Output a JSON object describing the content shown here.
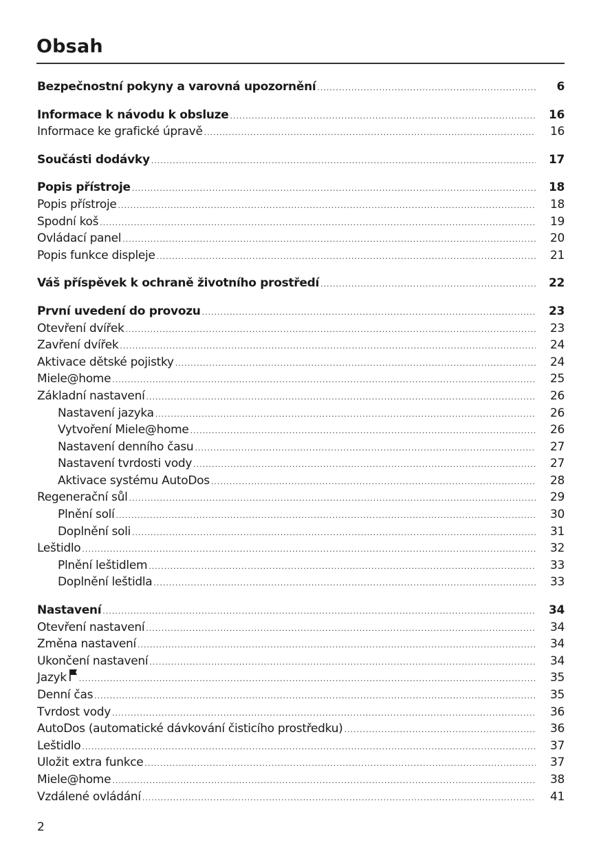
{
  "title": "Obsah",
  "page_number": "2",
  "sections": [
    {
      "entries": [
        {
          "text": "Bezpečnostní pokyny a varovná upozornění",
          "page": "6",
          "bold": true,
          "level": 1
        }
      ]
    },
    {
      "entries": [
        {
          "text": "Informace k návodu k obsluze",
          "page": "16",
          "bold": true,
          "level": 1
        },
        {
          "text": "Informace ke grafické úpravě",
          "page": "16",
          "level": 1
        }
      ]
    },
    {
      "entries": [
        {
          "text": "Součásti dodávky",
          "page": "17",
          "bold": true,
          "level": 1
        }
      ]
    },
    {
      "entries": [
        {
          "text": "Popis přístroje",
          "page": "18",
          "bold": true,
          "level": 1
        },
        {
          "text": "Popis přístroje",
          "page": "18",
          "level": 1
        },
        {
          "text": "Spodní koš",
          "page": "19",
          "level": 1
        },
        {
          "text": "Ovládací panel",
          "page": "20",
          "level": 1
        },
        {
          "text": "Popis funkce displeje",
          "page": "21",
          "level": 1
        }
      ]
    },
    {
      "entries": [
        {
          "text": "Váš příspěvek k ochraně životního prostředí",
          "page": "22",
          "bold": true,
          "level": 1
        }
      ]
    },
    {
      "entries": [
        {
          "text": "První uvedení do provozu",
          "page": "23",
          "bold": true,
          "level": 1
        },
        {
          "text": "Otevření dvířek",
          "page": "23",
          "level": 1
        },
        {
          "text": "Zavření dvířek",
          "page": "24",
          "level": 1
        },
        {
          "text": "Aktivace dětské pojistky",
          "page": "24",
          "level": 1
        },
        {
          "text": "Miele@home",
          "page": "25",
          "level": 1
        },
        {
          "text": "Základní nastavení",
          "page": "26",
          "level": 1
        },
        {
          "text": "Nastavení jazyka",
          "page": "26",
          "level": 2
        },
        {
          "text": "Vytvoření Miele@home",
          "page": "26",
          "level": 2
        },
        {
          "text": "Nastavení denního času",
          "page": "27",
          "level": 2
        },
        {
          "text": "Nastavení tvrdosti vody",
          "page": "27",
          "level": 2
        },
        {
          "text": "Aktivace systému AutoDos",
          "page": "28",
          "level": 2
        },
        {
          "text": "Regenerační sůl",
          "page": "29",
          "level": 1
        },
        {
          "text": "Plnění solí",
          "page": "30",
          "level": 2
        },
        {
          "text": "Doplnění soli",
          "page": "31",
          "level": 2
        },
        {
          "text": "Leštidlo",
          "page": "32",
          "level": 1
        },
        {
          "text": "Plnění leštidlem",
          "page": "33",
          "level": 2
        },
        {
          "text": "Doplnění leštidla",
          "page": "33",
          "level": 2
        }
      ]
    },
    {
      "entries": [
        {
          "text": "Nastavení",
          "page": "34",
          "bold": true,
          "level": 1
        },
        {
          "text": "Otevření nastavení",
          "page": "34",
          "level": 1
        },
        {
          "text": "Změna nastavení",
          "page": "34",
          "level": 1
        },
        {
          "text": "Ukončení nastavení",
          "page": "34",
          "level": 1
        },
        {
          "text": "Jazyk",
          "page": "35",
          "level": 1,
          "icon": "flag-icon"
        },
        {
          "text": "Denní čas",
          "page": "35",
          "level": 1
        },
        {
          "text": "Tvrdost vody",
          "page": "36",
          "level": 1
        },
        {
          "text": "AutoDos (automatické dávkování čisticího prostředku)",
          "page": "36",
          "level": 1
        },
        {
          "text": "Leštidlo",
          "page": "37",
          "level": 1
        },
        {
          "text": "Uložit extra funkce",
          "page": "37",
          "level": 1
        },
        {
          "text": "Miele@home",
          "page": "38",
          "level": 1
        },
        {
          "text": "Vzdálené ovládání",
          "page": "41",
          "level": 1
        }
      ]
    }
  ]
}
